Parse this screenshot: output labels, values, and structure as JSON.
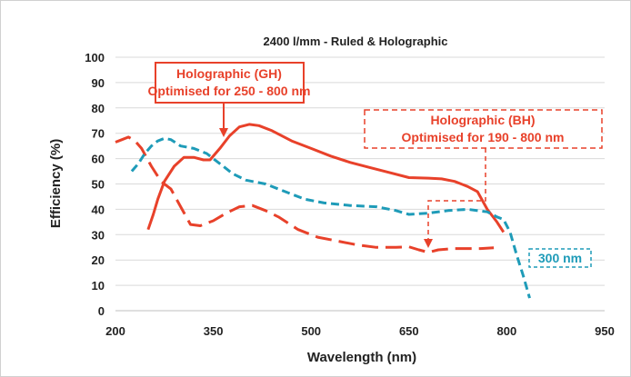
{
  "chart_data": {
    "type": "line",
    "title": "2400 l/mm - Ruled & Holographic",
    "xlabel": "Wavelength (nm)",
    "ylabel": "Efficiency (%)",
    "xlim": [
      200,
      950
    ],
    "ylim": [
      0,
      100
    ],
    "x_ticks": [
      "200",
      "350",
      "500",
      "650",
      "800",
      "950"
    ],
    "y_ticks": [
      "0",
      "10",
      "20",
      "30",
      "40",
      "50",
      "60",
      "70",
      "80",
      "90",
      "100"
    ],
    "grid": true,
    "series": [
      {
        "id": "gh",
        "color": "#e8412a",
        "dash": "solid",
        "points": [
          [
            250,
            32
          ],
          [
            258,
            38
          ],
          [
            265,
            44
          ],
          [
            275,
            51
          ],
          [
            290,
            57
          ],
          [
            305,
            60.5
          ],
          [
            320,
            60.5
          ],
          [
            335,
            59.5
          ],
          [
            345,
            59.5
          ],
          [
            360,
            64
          ],
          [
            375,
            69
          ],
          [
            390,
            72.5
          ],
          [
            405,
            73.5
          ],
          [
            420,
            73
          ],
          [
            440,
            71
          ],
          [
            470,
            67
          ],
          [
            500,
            64
          ],
          [
            530,
            61
          ],
          [
            560,
            58.5
          ],
          [
            590,
            56.5
          ],
          [
            620,
            54.5
          ],
          [
            650,
            52.5
          ],
          [
            680,
            52.3
          ],
          [
            700,
            52
          ],
          [
            720,
            51
          ],
          [
            740,
            49
          ],
          [
            755,
            47
          ],
          [
            770,
            40
          ],
          [
            785,
            35
          ],
          [
            795,
            31
          ]
        ]
      },
      {
        "id": "bh",
        "color": "#e8412a",
        "dash": "long",
        "points": [
          [
            200,
            66.5
          ],
          [
            210,
            67.5
          ],
          [
            220,
            68.5
          ],
          [
            230,
            67
          ],
          [
            240,
            64
          ],
          [
            255,
            57
          ],
          [
            270,
            51
          ],
          [
            285,
            48
          ],
          [
            300,
            41
          ],
          [
            315,
            34
          ],
          [
            330,
            33.5
          ],
          [
            350,
            35.5
          ],
          [
            370,
            38.5
          ],
          [
            390,
            41
          ],
          [
            410,
            41.5
          ],
          [
            430,
            39.5
          ],
          [
            450,
            37
          ],
          [
            480,
            32
          ],
          [
            510,
            29
          ],
          [
            540,
            27.5
          ],
          [
            570,
            26
          ],
          [
            600,
            25
          ],
          [
            630,
            25
          ],
          [
            650,
            25.2
          ],
          [
            665,
            24
          ],
          [
            680,
            23
          ],
          [
            695,
            24
          ],
          [
            720,
            24.5
          ],
          [
            760,
            24.5
          ],
          [
            780,
            24.8
          ]
        ]
      },
      {
        "id": "ruled300",
        "color": "#1e9bb8",
        "dash": "medium",
        "points": [
          [
            225,
            55
          ],
          [
            235,
            58
          ],
          [
            245,
            62
          ],
          [
            255,
            65
          ],
          [
            265,
            67
          ],
          [
            275,
            68
          ],
          [
            285,
            67.5
          ],
          [
            300,
            65
          ],
          [
            320,
            64
          ],
          [
            340,
            62
          ],
          [
            360,
            58
          ],
          [
            380,
            54
          ],
          [
            400,
            51.5
          ],
          [
            430,
            50
          ],
          [
            460,
            47
          ],
          [
            490,
            44
          ],
          [
            520,
            42.5
          ],
          [
            560,
            41.5
          ],
          [
            600,
            41
          ],
          [
            630,
            39.5
          ],
          [
            650,
            38
          ],
          [
            680,
            38.5
          ],
          [
            710,
            39.5
          ],
          [
            740,
            40
          ],
          [
            770,
            39
          ],
          [
            785,
            37
          ],
          [
            795,
            36
          ],
          [
            805,
            31
          ],
          [
            815,
            22
          ],
          [
            825,
            14
          ],
          [
            835,
            5
          ]
        ]
      }
    ],
    "annotations": [
      {
        "id": "gh-label",
        "lines": [
          "Holographic (GH)",
          "Optimised for 250 - 800 nm"
        ],
        "color": "#e8412a",
        "border": "solid"
      },
      {
        "id": "bh-label",
        "lines": [
          "Holographic (BH)",
          "Optimised for 190 - 800 nm"
        ],
        "color": "#e8412a",
        "border": "dashed"
      },
      {
        "id": "ruled-label",
        "lines": [
          "300 nm"
        ],
        "color": "#1e9bb8",
        "border": "dashed"
      }
    ]
  }
}
